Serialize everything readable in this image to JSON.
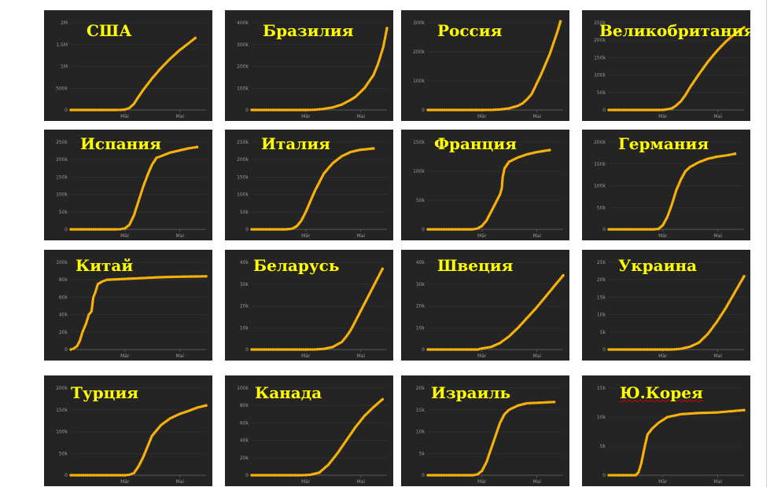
{
  "chart_data": [
    {
      "type": "line",
      "title": "США",
      "x_ticks": [
        "Mär",
        "Mai"
      ],
      "y_ticks": [
        "0",
        "500k",
        "1M",
        "1,5M",
        "2M"
      ],
      "ylim": [
        0,
        2000000
      ],
      "xlim": [
        0,
        150
      ],
      "points": [
        [
          0,
          0
        ],
        [
          50,
          0
        ],
        [
          55,
          2000
        ],
        [
          60,
          10000
        ],
        [
          65,
          45000
        ],
        [
          70,
          140000
        ],
        [
          75,
          300000
        ],
        [
          80,
          450000
        ],
        [
          90,
          720000
        ],
        [
          100,
          960000
        ],
        [
          110,
          1170000
        ],
        [
          120,
          1360000
        ],
        [
          130,
          1520000
        ],
        [
          138,
          1650000
        ]
      ]
    },
    {
      "type": "line",
      "title": "Бразилия",
      "x_ticks": [
        "Mär",
        "Mai"
      ],
      "y_ticks": [
        "0",
        "100k",
        "200k",
        "300k",
        "400k"
      ],
      "ylim": [
        0,
        400000
      ],
      "xlim": [
        0,
        150
      ],
      "points": [
        [
          0,
          0
        ],
        [
          60,
          0
        ],
        [
          70,
          1000
        ],
        [
          80,
          5000
        ],
        [
          90,
          12000
        ],
        [
          100,
          25000
        ],
        [
          110,
          47000
        ],
        [
          115,
          60000
        ],
        [
          120,
          80000
        ],
        [
          125,
          100000
        ],
        [
          130,
          130000
        ],
        [
          135,
          160000
        ],
        [
          140,
          210000
        ],
        [
          143,
          250000
        ],
        [
          146,
          290000
        ],
        [
          150,
          375000
        ]
      ]
    },
    {
      "type": "line",
      "title": "Россия",
      "x_ticks": [
        "Mär",
        "Mai"
      ],
      "y_ticks": [
        "0",
        "100k",
        "200k",
        "300k"
      ],
      "ylim": [
        0,
        330000
      ],
      "xlim": [
        0,
        150
      ],
      "points": [
        [
          0,
          0
        ],
        [
          60,
          0
        ],
        [
          70,
          300
        ],
        [
          80,
          1800
        ],
        [
          90,
          6000
        ],
        [
          100,
          16000
        ],
        [
          105,
          25000
        ],
        [
          110,
          40000
        ],
        [
          115,
          60000
        ],
        [
          120,
          95000
        ],
        [
          125,
          130000
        ],
        [
          130,
          170000
        ],
        [
          135,
          210000
        ],
        [
          140,
          260000
        ],
        [
          144,
          300000
        ],
        [
          147,
          335000
        ]
      ]
    },
    {
      "type": "line",
      "title": "Великобритания",
      "x_ticks": [
        "Mär",
        "Mai"
      ],
      "y_ticks": [
        "0",
        "50k",
        "100k",
        "150k",
        "200k",
        "250k"
      ],
      "ylim": [
        0,
        280000
      ],
      "xlim": [
        0,
        150
      ],
      "points": [
        [
          0,
          0
        ],
        [
          55,
          0
        ],
        [
          62,
          800
        ],
        [
          70,
          5000
        ],
        [
          75,
          15000
        ],
        [
          80,
          28000
        ],
        [
          85,
          48000
        ],
        [
          90,
          72000
        ],
        [
          100,
          115000
        ],
        [
          110,
          155000
        ],
        [
          120,
          190000
        ],
        [
          130,
          220000
        ],
        [
          140,
          245000
        ],
        [
          150,
          265000
        ]
      ]
    },
    {
      "type": "line",
      "title": "Испания",
      "x_ticks": [
        "Mär",
        "Mai"
      ],
      "y_ticks": [
        "0",
        "50k",
        "100k",
        "150k",
        "200k",
        "250k"
      ],
      "ylim": [
        0,
        250000
      ],
      "xlim": [
        0,
        150
      ],
      "points": [
        [
          0,
          0
        ],
        [
          50,
          0
        ],
        [
          55,
          500
        ],
        [
          60,
          3000
        ],
        [
          65,
          13000
        ],
        [
          70,
          40000
        ],
        [
          75,
          80000
        ],
        [
          80,
          120000
        ],
        [
          85,
          155000
        ],
        [
          90,
          185000
        ],
        [
          95,
          205000
        ],
        [
          100,
          210000
        ],
        [
          110,
          220000
        ],
        [
          120,
          226000
        ],
        [
          130,
          232000
        ],
        [
          140,
          236000
        ]
      ]
    },
    {
      "type": "line",
      "title": "Италия",
      "x_ticks": [
        "Mär",
        "Mai"
      ],
      "y_ticks": [
        "0",
        "50k",
        "100k",
        "150k",
        "200k",
        "250k"
      ],
      "ylim": [
        0,
        250000
      ],
      "xlim": [
        0,
        150
      ],
      "points": [
        [
          0,
          0
        ],
        [
          38,
          0
        ],
        [
          45,
          2000
        ],
        [
          50,
          9000
        ],
        [
          55,
          25000
        ],
        [
          60,
          50000
        ],
        [
          65,
          80000
        ],
        [
          70,
          110000
        ],
        [
          75,
          135000
        ],
        [
          80,
          160000
        ],
        [
          90,
          190000
        ],
        [
          100,
          210000
        ],
        [
          110,
          222000
        ],
        [
          120,
          228000
        ],
        [
          135,
          232000
        ]
      ]
    },
    {
      "type": "line",
      "title": "Франция",
      "x_ticks": [
        "Mär",
        "Mai"
      ],
      "y_ticks": [
        "0",
        "50k",
        "100k",
        "150k"
      ],
      "ylim": [
        0,
        200000
      ],
      "xlim": [
        0,
        150
      ],
      "points": [
        [
          0,
          0
        ],
        [
          50,
          0
        ],
        [
          55,
          2000
        ],
        [
          60,
          8000
        ],
        [
          65,
          20000
        ],
        [
          70,
          40000
        ],
        [
          75,
          60000
        ],
        [
          80,
          80000
        ],
        [
          82,
          95000
        ],
        [
          83,
          120000
        ],
        [
          85,
          140000
        ],
        [
          90,
          155000
        ],
        [
          100,
          165000
        ],
        [
          110,
          172000
        ],
        [
          120,
          177000
        ],
        [
          135,
          182000
        ]
      ]
    },
    {
      "type": "line",
      "title": "Германия",
      "x_ticks": [
        "Mär",
        "Mai"
      ],
      "y_ticks": [
        "0",
        "50k",
        "100k",
        "150k",
        "200k"
      ],
      "ylim": [
        0,
        210000
      ],
      "xlim": [
        0,
        150
      ],
      "points": [
        [
          0,
          0
        ],
        [
          50,
          0
        ],
        [
          55,
          1000
        ],
        [
          60,
          10000
        ],
        [
          65,
          30000
        ],
        [
          70,
          60000
        ],
        [
          75,
          95000
        ],
        [
          80,
          120000
        ],
        [
          85,
          140000
        ],
        [
          90,
          150000
        ],
        [
          100,
          162000
        ],
        [
          110,
          170000
        ],
        [
          120,
          175000
        ],
        [
          130,
          178000
        ],
        [
          140,
          182000
        ]
      ]
    },
    {
      "type": "line",
      "title": "Китай",
      "x_ticks": [
        "Mär",
        "Mai"
      ],
      "y_ticks": [
        "0",
        "20k",
        "40k",
        "60k",
        "80k",
        "100k"
      ],
      "ylim": [
        0,
        100000
      ],
      "xlim": [
        0,
        150
      ],
      "points": [
        [
          0,
          0
        ],
        [
          3,
          1000
        ],
        [
          7,
          4000
        ],
        [
          10,
          10000
        ],
        [
          13,
          20000
        ],
        [
          17,
          30000
        ],
        [
          20,
          40000
        ],
        [
          23,
          44000
        ],
        [
          25,
          60000
        ],
        [
          27,
          65000
        ],
        [
          30,
          75000
        ],
        [
          35,
          78000
        ],
        [
          40,
          80000
        ],
        [
          60,
          81000
        ],
        [
          80,
          82000
        ],
        [
          100,
          83000
        ],
        [
          120,
          83500
        ],
        [
          150,
          84000
        ]
      ]
    },
    {
      "type": "line",
      "title": "Беларусь",
      "x_ticks": [
        "Mär",
        "Mai"
      ],
      "y_ticks": [
        "0",
        "10k",
        "20k",
        "30k",
        "40k"
      ],
      "ylim": [
        0,
        40000
      ],
      "xlim": [
        0,
        150
      ],
      "points": [
        [
          0,
          0
        ],
        [
          60,
          0
        ],
        [
          70,
          50
        ],
        [
          80,
          300
        ],
        [
          90,
          1200
        ],
        [
          100,
          3500
        ],
        [
          105,
          6000
        ],
        [
          110,
          9000
        ],
        [
          115,
          13000
        ],
        [
          120,
          17000
        ],
        [
          125,
          21000
        ],
        [
          130,
          25000
        ],
        [
          135,
          29000
        ],
        [
          140,
          33000
        ],
        [
          145,
          37000
        ]
      ]
    },
    {
      "type": "line",
      "title": "Швеция",
      "x_ticks": [
        "Mär",
        "Mai"
      ],
      "y_ticks": [
        "0",
        "10k",
        "20k",
        "30k",
        "40k"
      ],
      "ylim": [
        0,
        40000
      ],
      "xlim": [
        0,
        150
      ],
      "points": [
        [
          0,
          0
        ],
        [
          55,
          0
        ],
        [
          60,
          500
        ],
        [
          70,
          1200
        ],
        [
          80,
          3000
        ],
        [
          90,
          6000
        ],
        [
          100,
          10000
        ],
        [
          110,
          14500
        ],
        [
          120,
          19000
        ],
        [
          130,
          24000
        ],
        [
          140,
          29000
        ],
        [
          150,
          34000
        ]
      ]
    },
    {
      "type": "line",
      "title": "Украина",
      "x_ticks": [
        "Mär",
        "Mai"
      ],
      "y_ticks": [
        "0",
        "5k",
        "10k",
        "15k",
        "20k",
        "25k"
      ],
      "ylim": [
        0,
        25000
      ],
      "xlim": [
        0,
        150
      ],
      "points": [
        [
          0,
          0
        ],
        [
          70,
          0
        ],
        [
          80,
          200
        ],
        [
          90,
          800
        ],
        [
          100,
          2000
        ],
        [
          110,
          4500
        ],
        [
          120,
          8000
        ],
        [
          130,
          12000
        ],
        [
          140,
          16500
        ],
        [
          150,
          21000
        ]
      ]
    },
    {
      "type": "line",
      "title": "Турция",
      "x_ticks": [
        "Mär",
        "Mai"
      ],
      "y_ticks": [
        "0",
        "50k",
        "100k",
        "150k",
        "200k"
      ],
      "ylim": [
        0,
        200000
      ],
      "xlim": [
        0,
        150
      ],
      "points": [
        [
          0,
          0
        ],
        [
          60,
          0
        ],
        [
          65,
          1000
        ],
        [
          70,
          5000
        ],
        [
          75,
          20000
        ],
        [
          80,
          40000
        ],
        [
          85,
          65000
        ],
        [
          90,
          90000
        ],
        [
          100,
          115000
        ],
        [
          110,
          130000
        ],
        [
          120,
          140000
        ],
        [
          130,
          147000
        ],
        [
          140,
          155000
        ],
        [
          150,
          160000
        ]
      ]
    },
    {
      "type": "line",
      "title": "Канада",
      "x_ticks": [
        "Mär",
        "Mai"
      ],
      "y_ticks": [
        "0",
        "20k",
        "40k",
        "60k",
        "80k",
        "100k"
      ],
      "ylim": [
        0,
        100000
      ],
      "xlim": [
        0,
        150
      ],
      "points": [
        [
          0,
          0
        ],
        [
          55,
          0
        ],
        [
          65,
          500
        ],
        [
          75,
          3000
        ],
        [
          85,
          12000
        ],
        [
          95,
          25000
        ],
        [
          105,
          40000
        ],
        [
          115,
          55000
        ],
        [
          125,
          68000
        ],
        [
          135,
          78000
        ],
        [
          145,
          87000
        ]
      ]
    },
    {
      "type": "line",
      "title": "Израиль",
      "x_ticks": [
        "Mär",
        "Mai"
      ],
      "y_ticks": [
        "0",
        "5k",
        "10k",
        "15k",
        "20k"
      ],
      "ylim": [
        0,
        20000
      ],
      "xlim": [
        0,
        150
      ],
      "points": [
        [
          0,
          0
        ],
        [
          50,
          0
        ],
        [
          55,
          200
        ],
        [
          60,
          1000
        ],
        [
          65,
          3000
        ],
        [
          70,
          6000
        ],
        [
          75,
          9000
        ],
        [
          80,
          12000
        ],
        [
          85,
          14000
        ],
        [
          90,
          15000
        ],
        [
          100,
          16000
        ],
        [
          110,
          16500
        ],
        [
          120,
          16600
        ],
        [
          130,
          16700
        ],
        [
          140,
          16800
        ]
      ]
    },
    {
      "type": "line",
      "title": "Ю.Корея",
      "x_ticks": [
        "Mär",
        "Mai"
      ],
      "y_ticks": [
        "0",
        "5k",
        "10k",
        "15k"
      ],
      "ylim": [
        0,
        15000
      ],
      "xlim": [
        0,
        150
      ],
      "points": [
        [
          0,
          0
        ],
        [
          30,
          0
        ],
        [
          33,
          500
        ],
        [
          36,
          2000
        ],
        [
          40,
          5000
        ],
        [
          43,
          7000
        ],
        [
          48,
          8000
        ],
        [
          55,
          9000
        ],
        [
          65,
          10000
        ],
        [
          80,
          10500
        ],
        [
          100,
          10700
        ],
        [
          120,
          10800
        ],
        [
          150,
          11200
        ]
      ]
    }
  ]
}
